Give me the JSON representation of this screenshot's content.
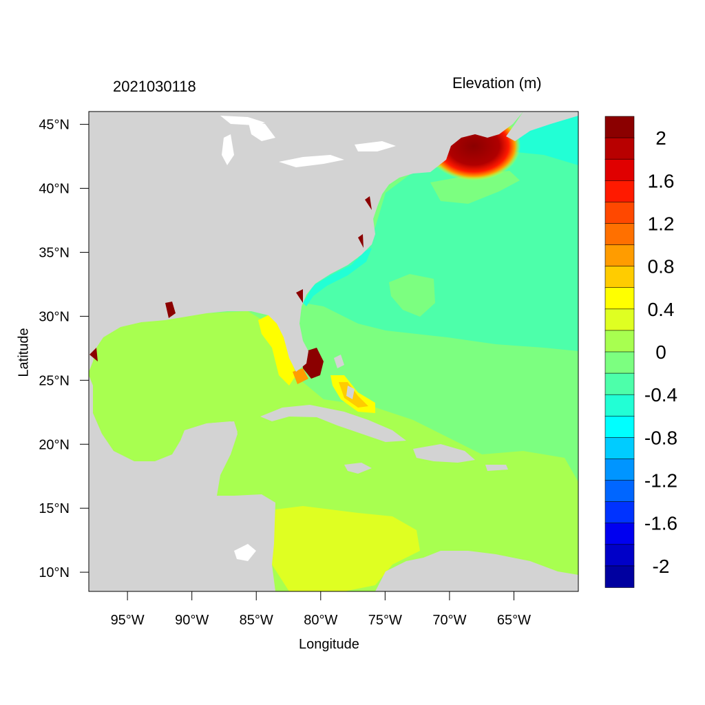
{
  "header": {
    "timestamp": "2021030118",
    "variable_label": "Elevation (m)"
  },
  "axes": {
    "x_title": "Longitude",
    "y_title": "Latitude",
    "x_ticks": [
      "95°W",
      "90°W",
      "85°W",
      "80°W",
      "75°W",
      "70°W",
      "65°W"
    ],
    "x_tick_values": [
      -95,
      -90,
      -85,
      -80,
      -75,
      -70,
      -65
    ],
    "y_ticks": [
      "10°N",
      "15°N",
      "20°N",
      "25°N",
      "30°N",
      "35°N",
      "40°N",
      "45°N"
    ],
    "y_tick_values": [
      10,
      15,
      20,
      25,
      30,
      35,
      40,
      45
    ],
    "lon_range": [
      -98,
      -60
    ],
    "lat_range": [
      8.5,
      46
    ]
  },
  "colorbar": {
    "labels": [
      "2",
      "1.6",
      "1.2",
      "0.8",
      "0.4",
      "0",
      "-0.4",
      "-0.8",
      "-1.2",
      "-1.6",
      "-2"
    ],
    "colors": [
      "#8b0000",
      "#b80000",
      "#e00000",
      "#ff1a00",
      "#ff4800",
      "#ff7000",
      "#ff9c00",
      "#ffcc00",
      "#ffff00",
      "#dfff22",
      "#a8ff50",
      "#7cff80",
      "#4dffaa",
      "#22ffd5",
      "#00ffff",
      "#00ccff",
      "#0095ff",
      "#0066ff",
      "#0033ff",
      "#0000f0",
      "#0000c8",
      "#0000a0"
    ]
  },
  "land_color": "#d3d3d3"
}
